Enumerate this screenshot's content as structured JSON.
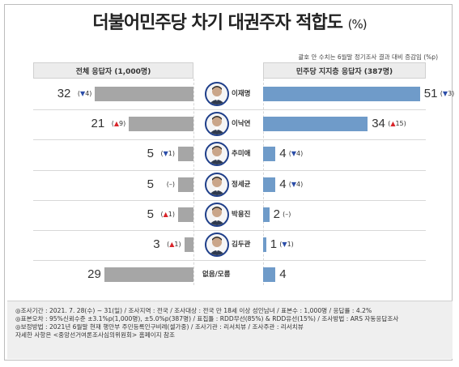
{
  "title": "더불어민주당 차기 대권주자 적합도",
  "title_unit": "(%)",
  "note": "괄호 안 수치는 6월말 정기조사 결과 대비 증감임 (%p)",
  "left_header": "전체 응답자 (1,000명)",
  "right_header": "민주당 지지층 응답자 (387명)",
  "colors": {
    "left_bar": "#a6a6a6",
    "right_bar": "#6f9bc9",
    "up": "#d9252a",
    "down": "#2b4da8"
  },
  "chart_data": {
    "type": "bar",
    "categories": [
      "이재명",
      "이낙연",
      "추미애",
      "정세균",
      "박용진",
      "김두관",
      "없음/모름"
    ],
    "series": [
      {
        "name": "전체 응답자 (1,000명)",
        "values": [
          32,
          21,
          5,
          5,
          5,
          3,
          29
        ],
        "changes": [
          {
            "dir": "down",
            "v": "4"
          },
          {
            "dir": "up",
            "v": "9"
          },
          {
            "dir": "down",
            "v": "1"
          },
          {
            "dir": "flat",
            "v": "–"
          },
          {
            "dir": "up",
            "v": "1"
          },
          {
            "dir": "up",
            "v": "1"
          },
          null
        ]
      },
      {
        "name": "민주당 지지층 응답자 (387명)",
        "values": [
          51,
          34,
          4,
          4,
          2,
          1,
          4
        ],
        "changes": [
          {
            "dir": "down",
            "v": "3"
          },
          {
            "dir": "up",
            "v": "15"
          },
          {
            "dir": "down",
            "v": "4"
          },
          {
            "dir": "down",
            "v": "4"
          },
          {
            "dir": "flat",
            "v": "–"
          },
          {
            "dir": "down",
            "v": "1"
          },
          null
        ]
      }
    ],
    "has_photo": [
      true,
      true,
      true,
      true,
      true,
      true,
      false
    ]
  },
  "footer": [
    "◎조사기간 : 2021. 7. 28(수) ~ 31(일) / 조사지역 : 전국 / 조사대상 : 전국 만 18세 이상 성인남녀 / 표본수 : 1,000명 / 응답률 : 4.2%",
    "◎표본오차 : 95%신뢰수준 ±3.1%p(1,000명), ±5.0%p(387명) / 표집틀 : RDD무선(85%) & RDD유선(15%) / 조사방법 : ARS 자동응답조사",
    "◎보정방법 : 2021년 6월말 현재 행안부 주민등록인구비례(셀가중) / 조사기관 : 리서치뷰 / 조사주관 : 리서치뷰",
    "자세한 사항은 <중앙선거여론조사심의위원회> 홈페이지 참조"
  ]
}
